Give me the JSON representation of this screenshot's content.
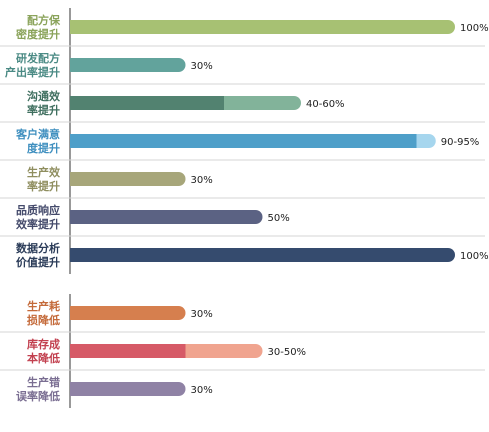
{
  "chart_data": {
    "type": "bar",
    "orientation": "horizontal",
    "xlim": [
      0,
      100
    ],
    "unit": "%",
    "groups": [
      {
        "items": [
          {
            "label_lines": [
              "配方保",
              "密度提升"
            ],
            "value": 100,
            "range": null,
            "value_label": "100%",
            "color": "#a7c173",
            "label_color": "#8aa35a"
          },
          {
            "label_lines": [
              "研发配方",
              "产出率提升"
            ],
            "value": 30,
            "range": null,
            "value_label": "30%",
            "color": "#62a39c",
            "label_color": "#4a8a84"
          },
          {
            "label_lines": [
              "沟通效",
              "率提升"
            ],
            "value": 40,
            "range": [
              40,
              60
            ],
            "value_label": "40-60%",
            "color": "#528270",
            "range_color": "#82b39a",
            "label_color": "#3f6f5f"
          },
          {
            "label_lines": [
              "客户满意",
              "度提升"
            ],
            "value": 90,
            "range": [
              90,
              95
            ],
            "value_label": "90-95%",
            "color": "#4e9fc9",
            "range_color": "#a6d6ee",
            "label_color": "#3f8fbf"
          },
          {
            "label_lines": [
              "生产效",
              "率提升"
            ],
            "value": 30,
            "range": null,
            "value_label": "30%",
            "color": "#a7a67a",
            "label_color": "#8f8e5f"
          },
          {
            "label_lines": [
              "品质响应",
              "效率提升"
            ],
            "value": 50,
            "range": null,
            "value_label": "50%",
            "color": "#5b6283",
            "label_color": "#444a6b"
          },
          {
            "label_lines": [
              "数据分析",
              "价值提升"
            ],
            "value": 100,
            "range": null,
            "value_label": "100%",
            "color": "#354b6e",
            "label_color": "#2a3b58"
          }
        ]
      },
      {
        "items": [
          {
            "label_lines": [
              "生产耗",
              "损降低"
            ],
            "value": 30,
            "range": null,
            "value_label": "30%",
            "color": "#d67f4e",
            "label_color": "#c46a3a"
          },
          {
            "label_lines": [
              "库存成",
              "本降低"
            ],
            "value": 30,
            "range": [
              30,
              50
            ],
            "value_label": "30-50%",
            "color": "#d65a67",
            "range_color": "#f0a48f",
            "label_color": "#c2404f"
          },
          {
            "label_lines": [
              "生产错",
              "误率降低"
            ],
            "value": 30,
            "range": null,
            "value_label": "30%",
            "color": "#8f82a5",
            "label_color": "#7a6e92"
          }
        ]
      }
    ]
  }
}
